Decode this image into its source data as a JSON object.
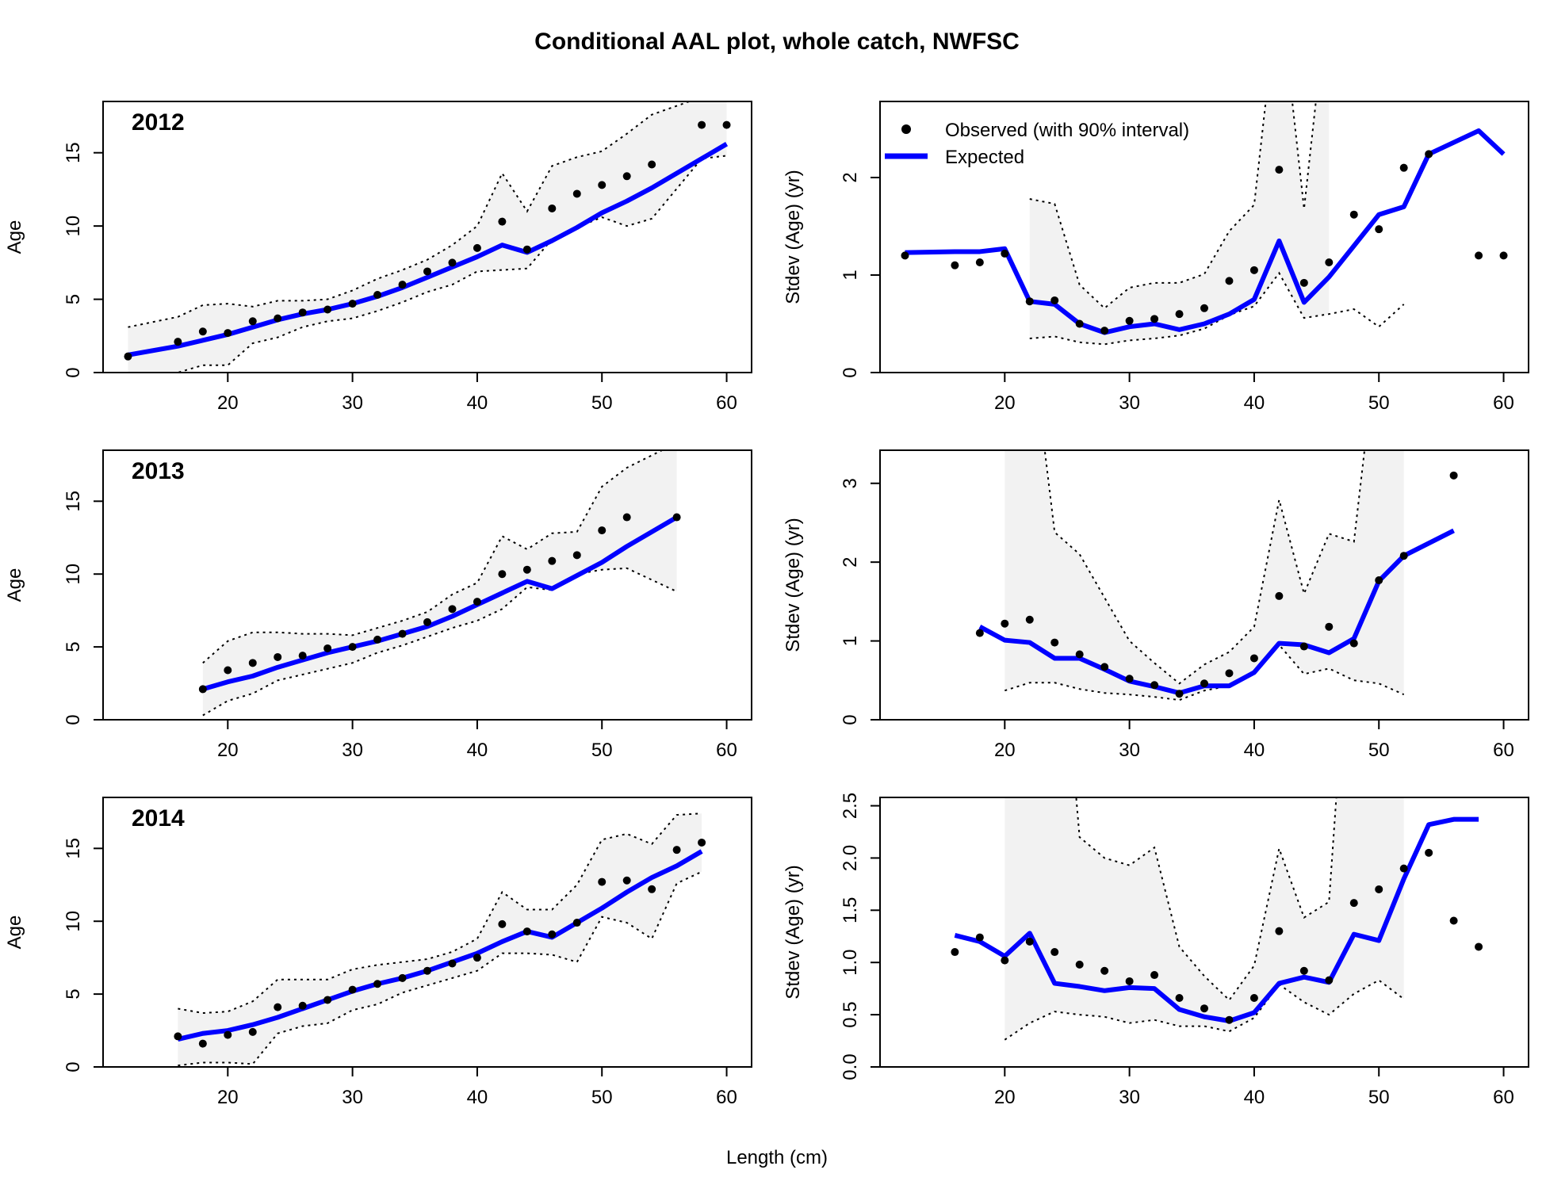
{
  "figure": {
    "title": "Conditional AAL plot, whole catch, NWFSC",
    "xlabel": "Length (cm)"
  },
  "legend": {
    "observed": "Observed (with 90% interval)",
    "expected": "Expected"
  },
  "colors": {
    "expected_line": "#0000ff",
    "observed_points": "#000000",
    "interval_fill": "#f2f2f2",
    "interval_line": "#000000"
  },
  "chart_data": [
    {
      "type": "line",
      "panel": "mean-age-2012",
      "year_label": "2012",
      "ylabel": "Age",
      "xlim": [
        10,
        62
      ],
      "ylim": [
        0,
        18.5
      ],
      "xticks": [
        20,
        30,
        40,
        50,
        60
      ],
      "yticks": [
        0,
        5,
        10,
        15
      ],
      "x": [
        12,
        16,
        18,
        20,
        22,
        24,
        26,
        28,
        30,
        32,
        34,
        36,
        38,
        40,
        42,
        44,
        46,
        48,
        50,
        52,
        54,
        58,
        60
      ],
      "observed": [
        1.1,
        2.1,
        2.8,
        2.7,
        3.5,
        3.7,
        4.1,
        4.3,
        4.7,
        5.3,
        6.0,
        6.9,
        7.5,
        8.5,
        10.3,
        8.4,
        11.2,
        12.2,
        12.8,
        13.4,
        14.2,
        16.9,
        16.9
      ],
      "expected": [
        1.2,
        1.8,
        2.2,
        2.6,
        3.1,
        3.6,
        4.0,
        4.3,
        4.7,
        5.2,
        5.8,
        6.5,
        7.2,
        7.9,
        8.7,
        8.2,
        9.0,
        9.9,
        10.9,
        11.7,
        12.6,
        14.6,
        15.6
      ],
      "upper": [
        3.1,
        3.8,
        4.6,
        4.7,
        4.5,
        4.9,
        4.9,
        5.0,
        5.6,
        6.4,
        7.0,
        7.7,
        8.7,
        10.0,
        13.6,
        11.0,
        14.1,
        14.7,
        15.1,
        16.3,
        17.6,
        18.8,
        19.3
      ],
      "lower": [
        0.0,
        0.0,
        0.5,
        0.5,
        2.0,
        2.4,
        3.1,
        3.5,
        3.7,
        4.2,
        4.8,
        5.5,
        6.0,
        6.9,
        7.0,
        7.1,
        9.1,
        9.9,
        10.6,
        10.0,
        10.5,
        14.6,
        14.8
      ]
    },
    {
      "type": "line",
      "panel": "stdev-age-2012",
      "ylabel": "Stdev (Age) (yr)",
      "xlim": [
        10,
        62
      ],
      "ylim": [
        0,
        2.78
      ],
      "xticks": [
        20,
        30,
        40,
        50,
        60
      ],
      "yticks": [
        0.0,
        1.0,
        2.0
      ],
      "x": [
        12,
        16,
        18,
        20,
        22,
        24,
        26,
        28,
        30,
        32,
        34,
        36,
        38,
        40,
        42,
        44,
        46,
        48,
        50,
        52,
        54,
        58,
        60
      ],
      "observed": [
        1.2,
        1.1,
        1.13,
        1.22,
        0.73,
        0.74,
        0.5,
        0.43,
        0.53,
        0.55,
        0.6,
        0.66,
        0.94,
        1.05,
        2.08,
        0.92,
        1.13,
        1.62,
        1.47,
        2.1,
        2.24,
        1.2,
        1.2
      ],
      "expected": [
        1.23,
        1.24,
        1.24,
        1.27,
        0.73,
        0.7,
        0.5,
        0.41,
        0.47,
        0.5,
        0.44,
        0.5,
        0.6,
        0.75,
        1.35,
        0.72,
        0.98,
        1.3,
        1.62,
        1.7,
        2.24,
        2.48,
        2.24
      ],
      "upper": [
        null,
        null,
        null,
        null,
        1.78,
        1.73,
        0.9,
        0.66,
        0.87,
        0.92,
        0.92,
        1.01,
        1.45,
        1.72,
        4.0,
        1.68,
        4.0,
        null,
        null,
        null,
        null,
        null,
        null
      ],
      "lower": [
        null,
        null,
        null,
        null,
        0.35,
        0.37,
        0.31,
        0.29,
        0.33,
        0.35,
        0.38,
        0.45,
        0.59,
        0.68,
        1.02,
        0.56,
        0.6,
        0.65,
        0.47,
        0.7,
        null,
        null,
        null
      ]
    },
    {
      "type": "line",
      "panel": "mean-age-2013",
      "year_label": "2013",
      "ylabel": "Age",
      "xlim": [
        10,
        62
      ],
      "ylim": [
        0,
        18.5
      ],
      "xticks": [
        20,
        30,
        40,
        50,
        60
      ],
      "yticks": [
        0,
        5,
        10,
        15
      ],
      "x": [
        18,
        20,
        22,
        24,
        26,
        28,
        30,
        32,
        34,
        36,
        38,
        40,
        42,
        44,
        46,
        48,
        50,
        52,
        56
      ],
      "observed": [
        2.1,
        3.4,
        3.9,
        4.3,
        4.4,
        4.9,
        5.0,
        5.5,
        5.9,
        6.7,
        7.6,
        8.1,
        10.0,
        10.3,
        10.9,
        11.3,
        13.0,
        13.9,
        13.9
      ],
      "expected": [
        2.1,
        2.6,
        3.0,
        3.6,
        4.1,
        4.6,
        5.0,
        5.4,
        5.9,
        6.4,
        7.1,
        7.9,
        8.7,
        9.5,
        9.0,
        9.9,
        10.8,
        11.9,
        13.9
      ],
      "upper": [
        3.9,
        5.4,
        6.0,
        6.0,
        5.9,
        5.9,
        5.8,
        6.3,
        6.8,
        7.4,
        8.6,
        9.4,
        12.6,
        11.7,
        12.8,
        12.9,
        16.0,
        17.3,
        19.0
      ],
      "lower": [
        0.3,
        1.3,
        1.8,
        2.7,
        3.1,
        3.5,
        3.9,
        4.6,
        5.1,
        5.7,
        6.3,
        6.8,
        7.6,
        9.1,
        8.9,
        10.0,
        10.3,
        10.4,
        8.8
      ]
    },
    {
      "type": "line",
      "panel": "stdev-age-2013",
      "ylabel": "Stdev (Age) (yr)",
      "xlim": [
        10,
        62
      ],
      "ylim": [
        0,
        3.42
      ],
      "xticks": [
        20,
        30,
        40,
        50,
        60
      ],
      "yticks": [
        0.0,
        1.0,
        2.0,
        3.0
      ],
      "x": [
        18,
        20,
        22,
        24,
        26,
        28,
        30,
        32,
        34,
        36,
        38,
        40,
        42,
        44,
        46,
        48,
        50,
        52,
        56
      ],
      "observed": [
        1.1,
        1.22,
        1.27,
        0.98,
        0.83,
        0.67,
        0.52,
        0.44,
        0.33,
        0.46,
        0.59,
        0.78,
        1.57,
        0.93,
        1.18,
        0.97,
        1.77,
        2.08,
        3.1
      ],
      "expected": [
        1.18,
        1.01,
        0.98,
        0.78,
        0.78,
        0.64,
        0.49,
        0.42,
        0.34,
        0.43,
        0.43,
        0.6,
        0.97,
        0.95,
        0.85,
        1.03,
        1.76,
        2.08,
        2.4
      ],
      "upper": [
        null,
        5.0,
        5.0,
        2.38,
        2.1,
        1.55,
        1.0,
        0.72,
        0.46,
        0.7,
        0.86,
        1.18,
        2.79,
        1.6,
        2.36,
        2.26,
        5.0,
        5.0,
        null
      ],
      "lower": [
        null,
        0.37,
        0.47,
        0.47,
        0.39,
        0.34,
        0.32,
        0.29,
        0.25,
        0.37,
        0.43,
        0.58,
        0.95,
        0.58,
        0.65,
        0.5,
        0.46,
        0.32,
        null
      ]
    },
    {
      "type": "line",
      "panel": "mean-age-2014",
      "year_label": "2014",
      "ylabel": "Age",
      "xlim": [
        10,
        62
      ],
      "ylim": [
        0,
        18.5
      ],
      "xticks": [
        20,
        30,
        40,
        50,
        60
      ],
      "yticks": [
        0,
        5,
        10,
        15
      ],
      "x": [
        16,
        18,
        20,
        22,
        24,
        26,
        28,
        30,
        32,
        34,
        36,
        38,
        40,
        42,
        44,
        46,
        48,
        50,
        52,
        54,
        56,
        58
      ],
      "observed": [
        2.1,
        1.6,
        2.2,
        2.4,
        4.1,
        4.2,
        4.6,
        5.3,
        5.7,
        6.1,
        6.6,
        7.1,
        7.5,
        9.8,
        9.3,
        9.1,
        9.9,
        12.7,
        12.8,
        12.2,
        14.9,
        15.4
      ],
      "expected": [
        1.9,
        2.3,
        2.5,
        2.9,
        3.4,
        4.0,
        4.6,
        5.2,
        5.7,
        6.1,
        6.6,
        7.2,
        7.8,
        8.6,
        9.3,
        8.9,
        9.9,
        10.9,
        12.0,
        13.0,
        13.8,
        14.8
      ],
      "upper": [
        4.0,
        3.7,
        3.8,
        4.5,
        6.0,
        6.0,
        6.0,
        6.7,
        7.0,
        7.2,
        7.4,
        7.9,
        8.8,
        12.0,
        10.8,
        10.8,
        12.5,
        15.6,
        16.0,
        15.3,
        17.3,
        17.4
      ],
      "lower": [
        0.1,
        0.3,
        0.3,
        0.2,
        2.3,
        2.8,
        3.0,
        3.9,
        4.3,
        5.1,
        5.6,
        6.1,
        6.6,
        7.8,
        7.8,
        7.7,
        7.2,
        10.3,
        9.9,
        8.8,
        12.6,
        13.4
      ]
    },
    {
      "type": "line",
      "panel": "stdev-age-2014",
      "ylabel": "Stdev (Age) (yr)",
      "xlim": [
        10,
        62
      ],
      "ylim": [
        0,
        2.58
      ],
      "xticks": [
        20,
        30,
        40,
        50,
        60
      ],
      "yticks": [
        0.0,
        0.5,
        1.0,
        1.5,
        2.0,
        2.5
      ],
      "x": [
        16,
        18,
        20,
        22,
        24,
        26,
        28,
        30,
        32,
        34,
        36,
        38,
        40,
        42,
        44,
        46,
        48,
        50,
        52,
        54,
        56,
        58
      ],
      "observed": [
        1.1,
        1.24,
        1.02,
        1.2,
        1.1,
        0.98,
        0.92,
        0.82,
        0.88,
        0.66,
        0.56,
        0.45,
        0.66,
        1.3,
        0.92,
        0.83,
        1.57,
        1.7,
        1.9,
        2.05,
        1.4,
        1.15
      ],
      "expected": [
        1.26,
        1.2,
        1.06,
        1.28,
        0.8,
        0.77,
        0.73,
        0.76,
        0.75,
        0.55,
        0.48,
        0.44,
        0.52,
        0.8,
        0.86,
        0.81,
        1.27,
        1.21,
        1.8,
        2.32,
        2.37,
        2.37
      ],
      "upper": [
        null,
        null,
        5.0,
        5.0,
        5.0,
        2.2,
        2.0,
        1.93,
        2.1,
        1.15,
        0.87,
        0.64,
        0.97,
        2.09,
        1.43,
        1.58,
        5.0,
        5.0,
        5.0,
        null,
        null,
        null
      ],
      "lower": [
        null,
        null,
        0.26,
        0.42,
        0.53,
        0.5,
        0.48,
        0.42,
        0.45,
        0.39,
        0.39,
        0.34,
        0.47,
        0.79,
        0.62,
        0.5,
        0.7,
        0.83,
        0.65,
        null,
        null,
        null
      ]
    }
  ]
}
